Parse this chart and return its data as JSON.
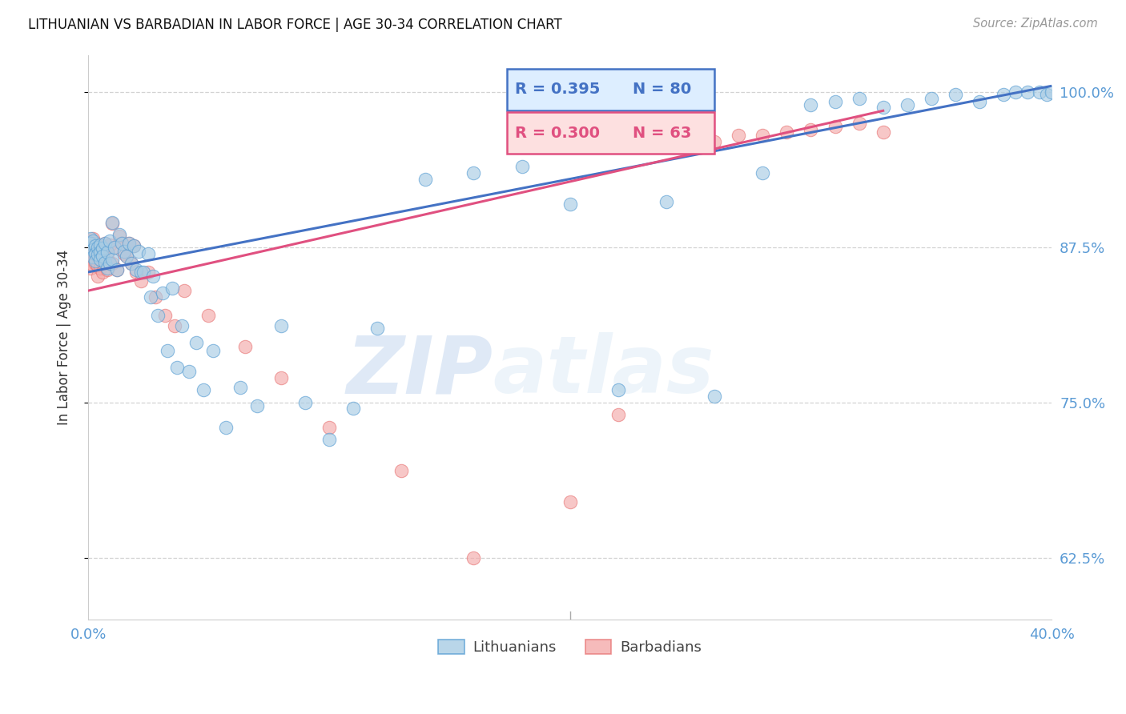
{
  "title": "LITHUANIAN VS BARBADIAN IN LABOR FORCE | AGE 30-34 CORRELATION CHART",
  "source": "Source: ZipAtlas.com",
  "ylabel": "In Labor Force | Age 30-34",
  "xlim": [
    0.0,
    0.4
  ],
  "ylim": [
    0.575,
    1.03
  ],
  "yticks": [
    0.625,
    0.75,
    0.875,
    1.0
  ],
  "ytick_labels": [
    "62.5%",
    "75.0%",
    "87.5%",
    "100.0%"
  ],
  "xticks": [
    0.0,
    0.05,
    0.1,
    0.15,
    0.2,
    0.25,
    0.3,
    0.35,
    0.4
  ],
  "xtick_labels": [
    "0.0%",
    "",
    "",
    "",
    "",
    "",
    "",
    "",
    "40.0%"
  ],
  "legend_blue_R": "R = 0.395",
  "legend_blue_N": "N = 80",
  "legend_pink_R": "R = 0.300",
  "legend_pink_N": "N = 63",
  "blue_color": "#a8cce4",
  "pink_color": "#f4aaaa",
  "blue_edge_color": "#5a9fd4",
  "pink_edge_color": "#e87878",
  "blue_line_color": "#4472c4",
  "pink_line_color": "#e05080",
  "axis_color": "#5b9bd5",
  "watermark_zip": "ZIP",
  "watermark_atlas": "atlas",
  "blue_scatter_x": [
    0.001,
    0.001,
    0.001,
    0.002,
    0.002,
    0.002,
    0.003,
    0.003,
    0.003,
    0.004,
    0.004,
    0.005,
    0.005,
    0.005,
    0.006,
    0.006,
    0.007,
    0.007,
    0.008,
    0.008,
    0.009,
    0.009,
    0.01,
    0.01,
    0.011,
    0.012,
    0.013,
    0.014,
    0.015,
    0.016,
    0.017,
    0.018,
    0.019,
    0.02,
    0.021,
    0.022,
    0.023,
    0.025,
    0.026,
    0.027,
    0.029,
    0.031,
    0.033,
    0.035,
    0.037,
    0.039,
    0.042,
    0.045,
    0.048,
    0.052,
    0.057,
    0.063,
    0.07,
    0.08,
    0.09,
    0.1,
    0.11,
    0.12,
    0.14,
    0.16,
    0.18,
    0.2,
    0.22,
    0.24,
    0.26,
    0.28,
    0.3,
    0.31,
    0.32,
    0.33,
    0.34,
    0.35,
    0.36,
    0.37,
    0.38,
    0.385,
    0.39,
    0.395,
    0.398,
    0.4
  ],
  "blue_scatter_y": [
    0.875,
    0.882,
    0.878,
    0.88,
    0.873,
    0.867,
    0.876,
    0.87,
    0.864,
    0.875,
    0.869,
    0.877,
    0.871,
    0.865,
    0.874,
    0.868,
    0.878,
    0.863,
    0.871,
    0.858,
    0.88,
    0.862,
    0.895,
    0.865,
    0.875,
    0.857,
    0.885,
    0.878,
    0.872,
    0.868,
    0.878,
    0.862,
    0.876,
    0.857,
    0.872,
    0.855,
    0.855,
    0.87,
    0.835,
    0.852,
    0.82,
    0.838,
    0.792,
    0.842,
    0.778,
    0.812,
    0.775,
    0.798,
    0.76,
    0.792,
    0.73,
    0.762,
    0.747,
    0.812,
    0.75,
    0.72,
    0.745,
    0.81,
    0.93,
    0.935,
    0.94,
    0.91,
    0.76,
    0.912,
    0.755,
    0.935,
    0.99,
    0.992,
    0.995,
    0.988,
    0.99,
    0.995,
    0.998,
    0.992,
    0.998,
    1.0,
    1.0,
    1.0,
    0.998,
    1.0
  ],
  "pink_scatter_x": [
    0.001,
    0.001,
    0.001,
    0.001,
    0.002,
    0.002,
    0.002,
    0.002,
    0.003,
    0.003,
    0.003,
    0.004,
    0.004,
    0.004,
    0.004,
    0.005,
    0.005,
    0.005,
    0.006,
    0.006,
    0.006,
    0.007,
    0.007,
    0.008,
    0.008,
    0.009,
    0.009,
    0.01,
    0.01,
    0.011,
    0.012,
    0.013,
    0.014,
    0.015,
    0.016,
    0.017,
    0.018,
    0.019,
    0.02,
    0.022,
    0.025,
    0.028,
    0.032,
    0.036,
    0.04,
    0.05,
    0.065,
    0.08,
    0.1,
    0.13,
    0.16,
    0.2,
    0.22,
    0.24,
    0.25,
    0.26,
    0.27,
    0.28,
    0.29,
    0.3,
    0.31,
    0.32,
    0.33
  ],
  "pink_scatter_y": [
    0.879,
    0.872,
    0.865,
    0.858,
    0.882,
    0.875,
    0.868,
    0.861,
    0.878,
    0.87,
    0.862,
    0.876,
    0.868,
    0.86,
    0.852,
    0.875,
    0.867,
    0.858,
    0.872,
    0.863,
    0.855,
    0.878,
    0.864,
    0.87,
    0.857,
    0.877,
    0.862,
    0.894,
    0.862,
    0.875,
    0.857,
    0.884,
    0.878,
    0.87,
    0.868,
    0.878,
    0.862,
    0.876,
    0.855,
    0.848,
    0.855,
    0.835,
    0.82,
    0.812,
    0.84,
    0.82,
    0.795,
    0.77,
    0.73,
    0.695,
    0.625,
    0.67,
    0.74,
    0.96,
    0.955,
    0.96,
    0.965,
    0.965,
    0.968,
    0.97,
    0.972,
    0.975,
    0.968
  ],
  "blue_trendline_x": [
    0.0,
    0.4
  ],
  "blue_trendline_y": [
    0.855,
    1.005
  ],
  "pink_trendline_x": [
    0.0,
    0.33
  ],
  "pink_trendline_y": [
    0.84,
    0.985
  ]
}
